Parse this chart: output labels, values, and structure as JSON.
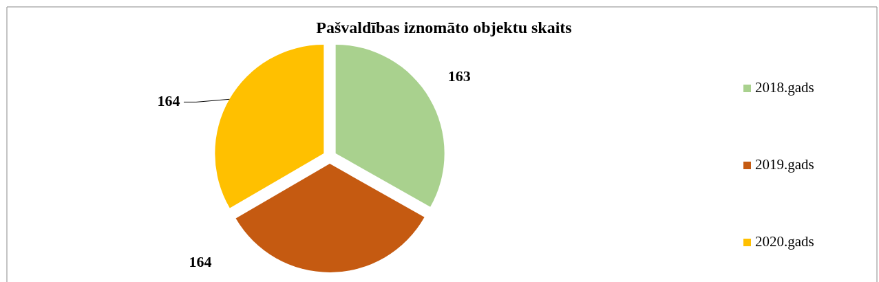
{
  "chart_data": {
    "type": "pie",
    "title": "Pašvaldības iznomāto objektu skaits",
    "categories": [
      "2018.gads",
      "2019.gads",
      "2020.gads"
    ],
    "values": [
      163,
      164,
      164
    ],
    "colors": [
      "#a9d18e",
      "#c55a11",
      "#ffc000"
    ],
    "data_labels": true,
    "legend": "right"
  }
}
